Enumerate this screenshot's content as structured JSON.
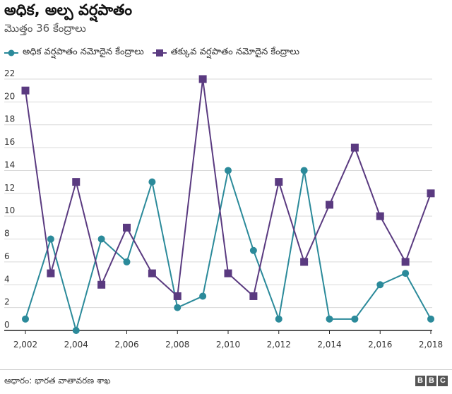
{
  "header": {
    "title": "అధిక, అల్ప వర్షపాతం",
    "subtitle": "మొత్తం 36 కేంద్రాలు"
  },
  "footer": {
    "source": "ఆధారం: భారత వాతావరణ శాఖ",
    "logo_letters": [
      "B",
      "B",
      "C"
    ]
  },
  "colors": {
    "series_high": "#2b8a9a",
    "series_low": "#5a3a80",
    "grid": "#d9d9d9",
    "axis": "#222222"
  },
  "chart_data": {
    "type": "line",
    "title": "అధిక, అల్ప వర్షపాతం",
    "subtitle": "మొత్తం 36 కేంద్రాలు",
    "xlabel": "",
    "ylabel": "",
    "x": [
      2002,
      2003,
      2004,
      2005,
      2006,
      2007,
      2008,
      2009,
      2010,
      2011,
      2012,
      2013,
      2014,
      2015,
      2016,
      2017,
      2018
    ],
    "x_tick_labels": [
      "2,002",
      "2,004",
      "2,006",
      "2,008",
      "2,010",
      "2,012",
      "2,014",
      "2,016",
      "2,018"
    ],
    "x_ticks": [
      2002,
      2004,
      2006,
      2008,
      2010,
      2012,
      2014,
      2016,
      2018
    ],
    "xlim": [
      2002,
      2018
    ],
    "ylim": [
      0,
      22
    ],
    "y_ticks": [
      0,
      2,
      4,
      6,
      8,
      10,
      12,
      14,
      16,
      18,
      20,
      22
    ],
    "grid": true,
    "legend_position": "top-left",
    "series": [
      {
        "name": "అధిక వర్షపాతం నమోదైన కేంద్రాలు",
        "marker": "circle",
        "values": [
          1,
          8,
          0,
          8,
          6,
          13,
          2,
          3,
          14,
          7,
          1,
          14,
          1,
          1,
          4,
          5,
          1
        ]
      },
      {
        "name": "తక్కువ వర్షపాతం నమోదైన కేంద్రాలు",
        "marker": "square",
        "values": [
          21,
          5,
          13,
          4,
          9,
          5,
          3,
          22,
          5,
          3,
          13,
          6,
          11,
          16,
          10,
          6,
          12
        ]
      }
    ]
  }
}
